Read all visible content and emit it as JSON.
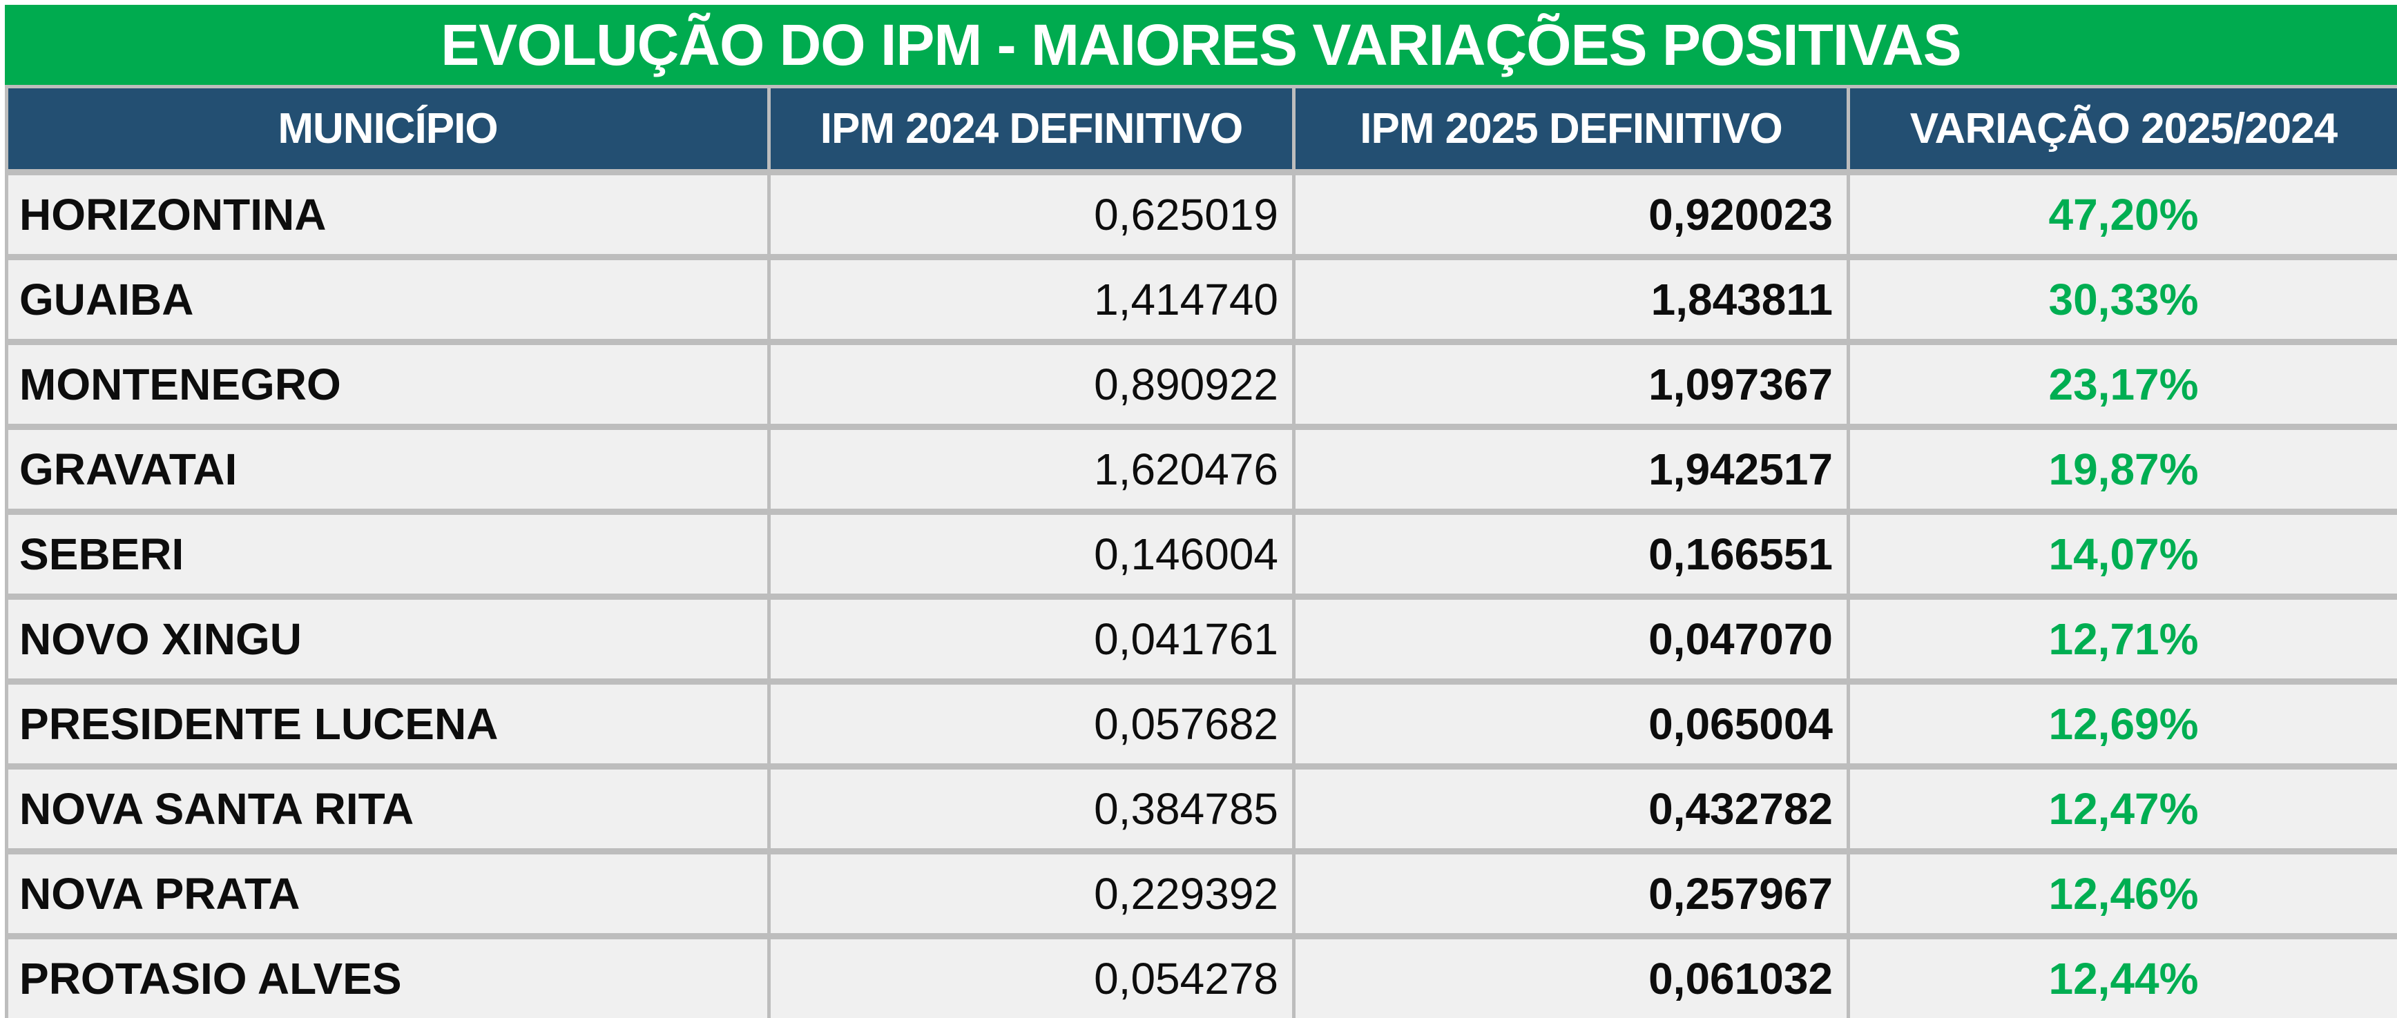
{
  "title": "EVOLUÇÃO DO IPM - MAIORES VARIAÇÕES POSITIVAS",
  "colors": {
    "title_bg": "#00AB4F",
    "header_bg": "#234F72",
    "row_bg": "#F0F0F0",
    "grid": "#BDBDBD",
    "positive": "#00AE52"
  },
  "table": {
    "columns": [
      "MUNICÍPIO",
      "IPM 2024 DEFINITIVO",
      "IPM 2025 DEFINITIVO",
      "VARIAÇÃO 2025/2024"
    ],
    "rows": [
      {
        "municipio": "HORIZONTINA",
        "ipm_2024": "0,625019",
        "ipm_2025": "0,920023",
        "variacao": "47,20%"
      },
      {
        "municipio": "GUAIBA",
        "ipm_2024": "1,414740",
        "ipm_2025": "1,843811",
        "variacao": "30,33%"
      },
      {
        "municipio": "MONTENEGRO",
        "ipm_2024": "0,890922",
        "ipm_2025": "1,097367",
        "variacao": "23,17%"
      },
      {
        "municipio": "GRAVATAI",
        "ipm_2024": "1,620476",
        "ipm_2025": "1,942517",
        "variacao": "19,87%"
      },
      {
        "municipio": "SEBERI",
        "ipm_2024": "0,146004",
        "ipm_2025": "0,166551",
        "variacao": "14,07%"
      },
      {
        "municipio": "NOVO XINGU",
        "ipm_2024": "0,041761",
        "ipm_2025": "0,047070",
        "variacao": "12,71%"
      },
      {
        "municipio": "PRESIDENTE LUCENA",
        "ipm_2024": "0,057682",
        "ipm_2025": "0,065004",
        "variacao": "12,69%"
      },
      {
        "municipio": "NOVA SANTA RITA",
        "ipm_2024": "0,384785",
        "ipm_2025": "0,432782",
        "variacao": "12,47%"
      },
      {
        "municipio": "NOVA PRATA",
        "ipm_2024": "0,229392",
        "ipm_2025": "0,257967",
        "variacao": "12,46%"
      },
      {
        "municipio": "PROTASIO ALVES",
        "ipm_2024": "0,054278",
        "ipm_2025": "0,061032",
        "variacao": "12,44%"
      }
    ]
  },
  "chart_data": {
    "type": "table",
    "title": "EVOLUÇÃO DO IPM - MAIORES VARIAÇÕES POSITIVAS",
    "columns": [
      "MUNICÍPIO",
      "IPM 2024 DEFINITIVO",
      "IPM 2025 DEFINITIVO",
      "VARIAÇÃO 2025/2024"
    ],
    "rows": [
      [
        "HORIZONTINA",
        0.625019,
        0.920023,
        47.2
      ],
      [
        "GUAIBA",
        1.41474,
        1.843811,
        30.33
      ],
      [
        "MONTENEGRO",
        0.890922,
        1.097367,
        23.17
      ],
      [
        "GRAVATAI",
        1.620476,
        1.942517,
        19.87
      ],
      [
        "SEBERI",
        0.146004,
        0.166551,
        14.07
      ],
      [
        "NOVO XINGU",
        0.041761,
        0.04707,
        12.71
      ],
      [
        "PRESIDENTE LUCENA",
        0.057682,
        0.065004,
        12.69
      ],
      [
        "NOVA SANTA RITA",
        0.384785,
        0.432782,
        12.47
      ],
      [
        "NOVA PRATA",
        0.229392,
        0.257967,
        12.46
      ],
      [
        "PROTASIO ALVES",
        0.054278,
        0.061032,
        12.44
      ]
    ],
    "notes": "Variation column shown in percent; decimal comma formatting (pt-BR); variation values colored green (positive)."
  }
}
